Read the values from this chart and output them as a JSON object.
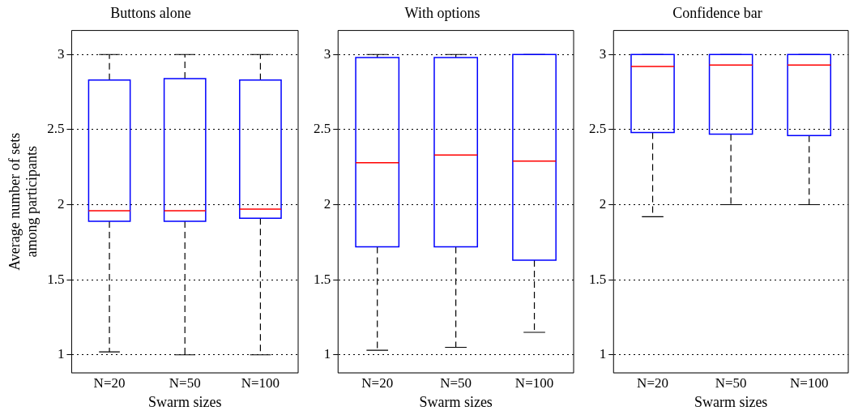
{
  "chart_data": [
    {
      "type": "box",
      "title": "Buttons alone",
      "xlabel": "Swarm sizes",
      "ylabel": "Average number of sets\namong participants",
      "categories": [
        "N=20",
        "N=50",
        "N=100"
      ],
      "ylim": [
        0.88,
        3.16
      ],
      "yticks": [
        1,
        1.5,
        2,
        2.5,
        3
      ],
      "grid": "y",
      "boxes": [
        {
          "low": 1.02,
          "q1": 1.89,
          "median": 1.96,
          "q3": 2.83,
          "high": 3
        },
        {
          "low": 1.0,
          "q1": 1.89,
          "median": 1.96,
          "q3": 2.84,
          "high": 3
        },
        {
          "low": 1.0,
          "q1": 1.91,
          "median": 1.97,
          "q3": 2.83,
          "high": 3
        }
      ]
    },
    {
      "type": "box",
      "title": "With options",
      "xlabel": "Swarm sizes",
      "categories": [
        "N=20",
        "N=50",
        "N=100"
      ],
      "ylim": [
        0.88,
        3.16
      ],
      "yticks": [
        1,
        1.5,
        2,
        2.5,
        3
      ],
      "grid": "y",
      "boxes": [
        {
          "low": 1.03,
          "q1": 1.72,
          "median": 2.28,
          "q3": 2.98,
          "high": 3
        },
        {
          "low": 1.05,
          "q1": 1.72,
          "median": 2.33,
          "q3": 2.98,
          "high": 3
        },
        {
          "low": 1.15,
          "q1": 1.63,
          "median": 2.29,
          "q3": 3,
          "high": 3
        }
      ]
    },
    {
      "type": "box",
      "title": "Confidence bar",
      "xlabel": "Swarm sizes",
      "categories": [
        "N=20",
        "N=50",
        "N=100"
      ],
      "ylim": [
        0.88,
        3.16
      ],
      "yticks": [
        1,
        1.5,
        2,
        2.5,
        3
      ],
      "grid": "y",
      "boxes": [
        {
          "low": 1.92,
          "q1": 2.48,
          "median": 2.92,
          "q3": 3,
          "high": 3
        },
        {
          "low": 2.0,
          "q1": 2.47,
          "median": 2.93,
          "q3": 3,
          "high": 3
        },
        {
          "low": 2.0,
          "q1": 2.46,
          "median": 2.93,
          "q3": 3,
          "high": 3
        }
      ]
    }
  ]
}
